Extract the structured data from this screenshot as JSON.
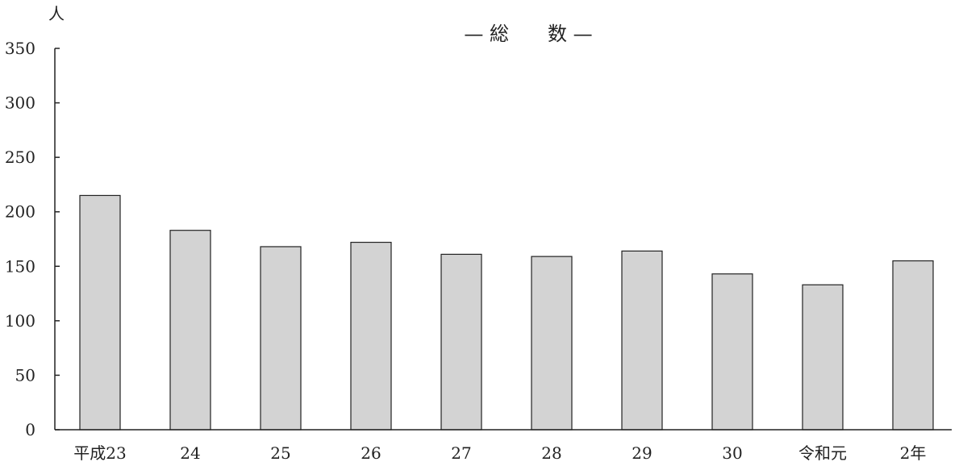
{
  "chart_data": {
    "type": "bar",
    "title": "— 総　　数 —",
    "ylabel": "人",
    "xlabel": "",
    "categories": [
      "平成23",
      "24",
      "25",
      "26",
      "27",
      "28",
      "29",
      "30",
      "令和元",
      "2年"
    ],
    "values": [
      215,
      183,
      168,
      172,
      161,
      159,
      164,
      143,
      133,
      155
    ],
    "ylim": [
      0,
      350
    ],
    "yticks": [
      0,
      50,
      100,
      150,
      200,
      250,
      300,
      350
    ],
    "grid": false,
    "colors": {
      "bar_fill": "#d3d3d3",
      "bar_stroke": "#222222",
      "axis": "#222222"
    }
  }
}
